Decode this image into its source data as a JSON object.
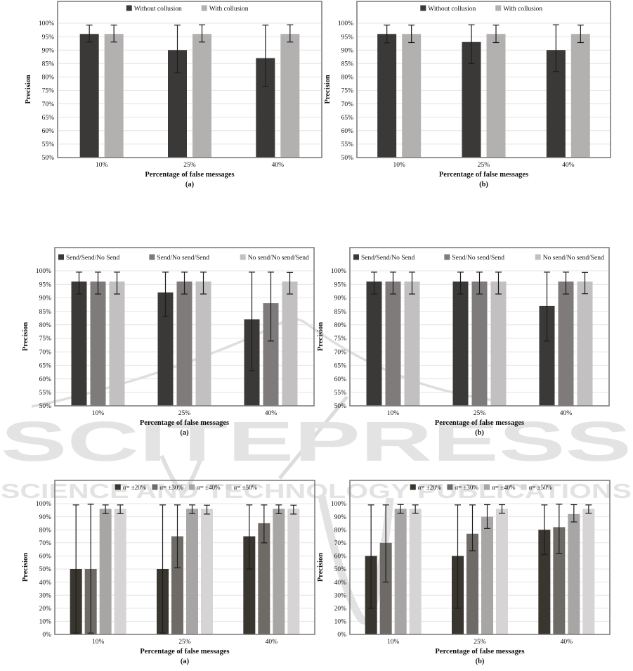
{
  "watermark": {
    "line1": "SCITEPRESS",
    "line2": "SCIENCE AND TECHNOLOGY PUBLICATIONS",
    "fill_color": "#e3e3e3",
    "swoosh_color": "#dedede"
  },
  "chart_data": [
    {
      "type": "bar",
      "panel_label": "(a)",
      "row": "top",
      "xlabel": "Percentage of false messages",
      "ylabel": "Precision",
      "categories": [
        "10%",
        "25%",
        "40%"
      ],
      "ylim": [
        50,
        100
      ],
      "ytick_step": 5,
      "ytick_suffix": "%",
      "grid": true,
      "legend_position": "top-inside",
      "legend_align": "center",
      "series": [
        {
          "name": "Without collusion",
          "color": "#3b3838",
          "values": [
            96,
            90,
            87
          ],
          "error_low": [
            93,
            81.5,
            76.5
          ],
          "error_high": [
            99.3,
            99.3,
            99.3
          ]
        },
        {
          "name": "With collusion",
          "color": "#b3b0b0",
          "values": [
            96,
            96,
            96
          ],
          "error_low": [
            93,
            93,
            93
          ],
          "error_high": [
            99.3,
            99.4,
            99.4
          ]
        }
      ]
    },
    {
      "type": "bar",
      "panel_label": "(b)",
      "row": "top",
      "xlabel": "Percentage of false messages",
      "ylabel": "Precision",
      "categories": [
        "10%",
        "25%",
        "40%"
      ],
      "ylim": [
        50,
        100
      ],
      "ytick_step": 5,
      "ytick_suffix": "%",
      "grid": true,
      "legend_position": "top-inside",
      "legend_align": "center",
      "series": [
        {
          "name": "Without collusion",
          "color": "#3b3838",
          "values": [
            96,
            93,
            90
          ],
          "error_low": [
            92.7,
            85,
            82
          ],
          "error_high": [
            99.3,
            99.4,
            99.4
          ]
        },
        {
          "name": "With collusion",
          "color": "#b3b0b0",
          "values": [
            96,
            96,
            96
          ],
          "error_low": [
            92.8,
            92.8,
            92.8
          ],
          "error_high": [
            99.3,
            99.3,
            99.3
          ]
        }
      ]
    },
    {
      "type": "bar",
      "panel_label": "(a)",
      "row": "middle",
      "xlabel": "Percentage of false messages",
      "ylabel": "Precision",
      "categories": [
        "10%",
        "25%",
        "40%"
      ],
      "ylim": [
        50,
        100
      ],
      "ytick_step": 5,
      "ytick_suffix": "%",
      "grid": true,
      "legend_position": "top-inside",
      "legend_align": "justify",
      "series": [
        {
          "name": "Send/Send/No Send",
          "color": "#3b3838",
          "values": [
            96,
            92,
            82
          ],
          "error_low": [
            91.4,
            83,
            63
          ],
          "error_high": [
            99.5,
            99.5,
            99.5
          ]
        },
        {
          "name": "Send/No send/Send",
          "color": "#7f7b7b",
          "values": [
            96,
            96,
            88
          ],
          "error_low": [
            91.4,
            91.4,
            74
          ],
          "error_high": [
            99.5,
            99.5,
            99.5
          ]
        },
        {
          "name": "No send/No send/Send",
          "color": "#c2c0c0",
          "values": [
            96,
            96,
            96
          ],
          "error_low": [
            91.4,
            91.4,
            91.4
          ],
          "error_high": [
            99.5,
            99.5,
            99.4
          ]
        }
      ]
    },
    {
      "type": "bar",
      "panel_label": "(b)",
      "row": "middle",
      "xlabel": "Percentage of false messages",
      "ylabel": "Precision",
      "categories": [
        "10%",
        "25%",
        "40%"
      ],
      "ylim": [
        50,
        100
      ],
      "ytick_step": 5,
      "ytick_suffix": "%",
      "grid": true,
      "legend_position": "top-inside",
      "legend_align": "justify",
      "series": [
        {
          "name": "Send/Send/No Send",
          "color": "#3b3838",
          "values": [
            96,
            96,
            87
          ],
          "error_low": [
            91.4,
            91.4,
            74
          ],
          "error_high": [
            99.5,
            99.5,
            99.5
          ]
        },
        {
          "name": "Send/No send/Send",
          "color": "#7f7b7b",
          "values": [
            96,
            96,
            96
          ],
          "error_low": [
            91.4,
            91.4,
            91.4
          ],
          "error_high": [
            99.5,
            99.5,
            99.5
          ]
        },
        {
          "name": "No send/No send/Send",
          "color": "#c2c0c0",
          "values": [
            96,
            96,
            96
          ],
          "error_low": [
            91.4,
            91.4,
            91.5
          ],
          "error_high": [
            99.5,
            99.5,
            99.4
          ]
        }
      ]
    },
    {
      "type": "bar",
      "panel_label": "(a)",
      "row": "bottom",
      "xlabel": "Percentage of false messages",
      "ylabel": "Precision",
      "categories": [
        "10%",
        "25%",
        "40%"
      ],
      "ylim": [
        0,
        100
      ],
      "ytick_step": 10,
      "ytick_suffix": "%",
      "grid": true,
      "legend_position": "top-inside",
      "legend_align": "center",
      "series": [
        {
          "name": "α= ±20%",
          "color": "#39352f",
          "values": [
            50,
            50,
            75
          ],
          "error_low": [
            1,
            1,
            50
          ],
          "error_high": [
            99,
            99,
            99
          ]
        },
        {
          "name": "α= ±30%",
          "color": "#6e6a66",
          "values": [
            50,
            75,
            85
          ],
          "error_low": [
            1,
            51,
            70
          ],
          "error_high": [
            99.5,
            99,
            99
          ]
        },
        {
          "name": "α= ±40%",
          "color": "#a8a5a5",
          "values": [
            96,
            96,
            96
          ],
          "error_low": [
            92.4,
            92.4,
            92.3
          ],
          "error_high": [
            99,
            99,
            99
          ]
        },
        {
          "name": "α= ±50%",
          "color": "#d6d4d4",
          "values": [
            96,
            96,
            96
          ],
          "error_low": [
            92.3,
            92,
            92
          ],
          "error_high": [
            99,
            98.8,
            98.8
          ]
        }
      ]
    },
    {
      "type": "bar",
      "panel_label": "(b)",
      "row": "bottom",
      "xlabel": "Percentage of false messages",
      "ylabel": "Precision",
      "categories": [
        "10%",
        "25%",
        "40%"
      ],
      "ylim": [
        0,
        100
      ],
      "ytick_step": 10,
      "ytick_suffix": "%",
      "grid": true,
      "legend_position": "top-inside",
      "legend_align": "center",
      "series": [
        {
          "name": "α= ±20%",
          "color": "#39352f",
          "values": [
            60,
            60,
            80
          ],
          "error_low": [
            20,
            20,
            61
          ],
          "error_high": [
            99,
            99,
            99
          ]
        },
        {
          "name": "α= ±30%",
          "color": "#6e6a66",
          "values": [
            70,
            77,
            82
          ],
          "error_low": [
            40,
            64,
            62
          ],
          "error_high": [
            99,
            99,
            99.5
          ]
        },
        {
          "name": "α= ±40%",
          "color": "#a8a5a5",
          "values": [
            96,
            90,
            92
          ],
          "error_low": [
            92.6,
            81,
            86
          ],
          "error_high": [
            99.3,
            99.2,
            99.2
          ]
        },
        {
          "name": "α= ±50%",
          "color": "#d6d4d4",
          "values": [
            96,
            96,
            96
          ],
          "error_low": [
            92.6,
            92.6,
            92.6
          ],
          "error_high": [
            99,
            99.2,
            99
          ]
        }
      ]
    }
  ]
}
